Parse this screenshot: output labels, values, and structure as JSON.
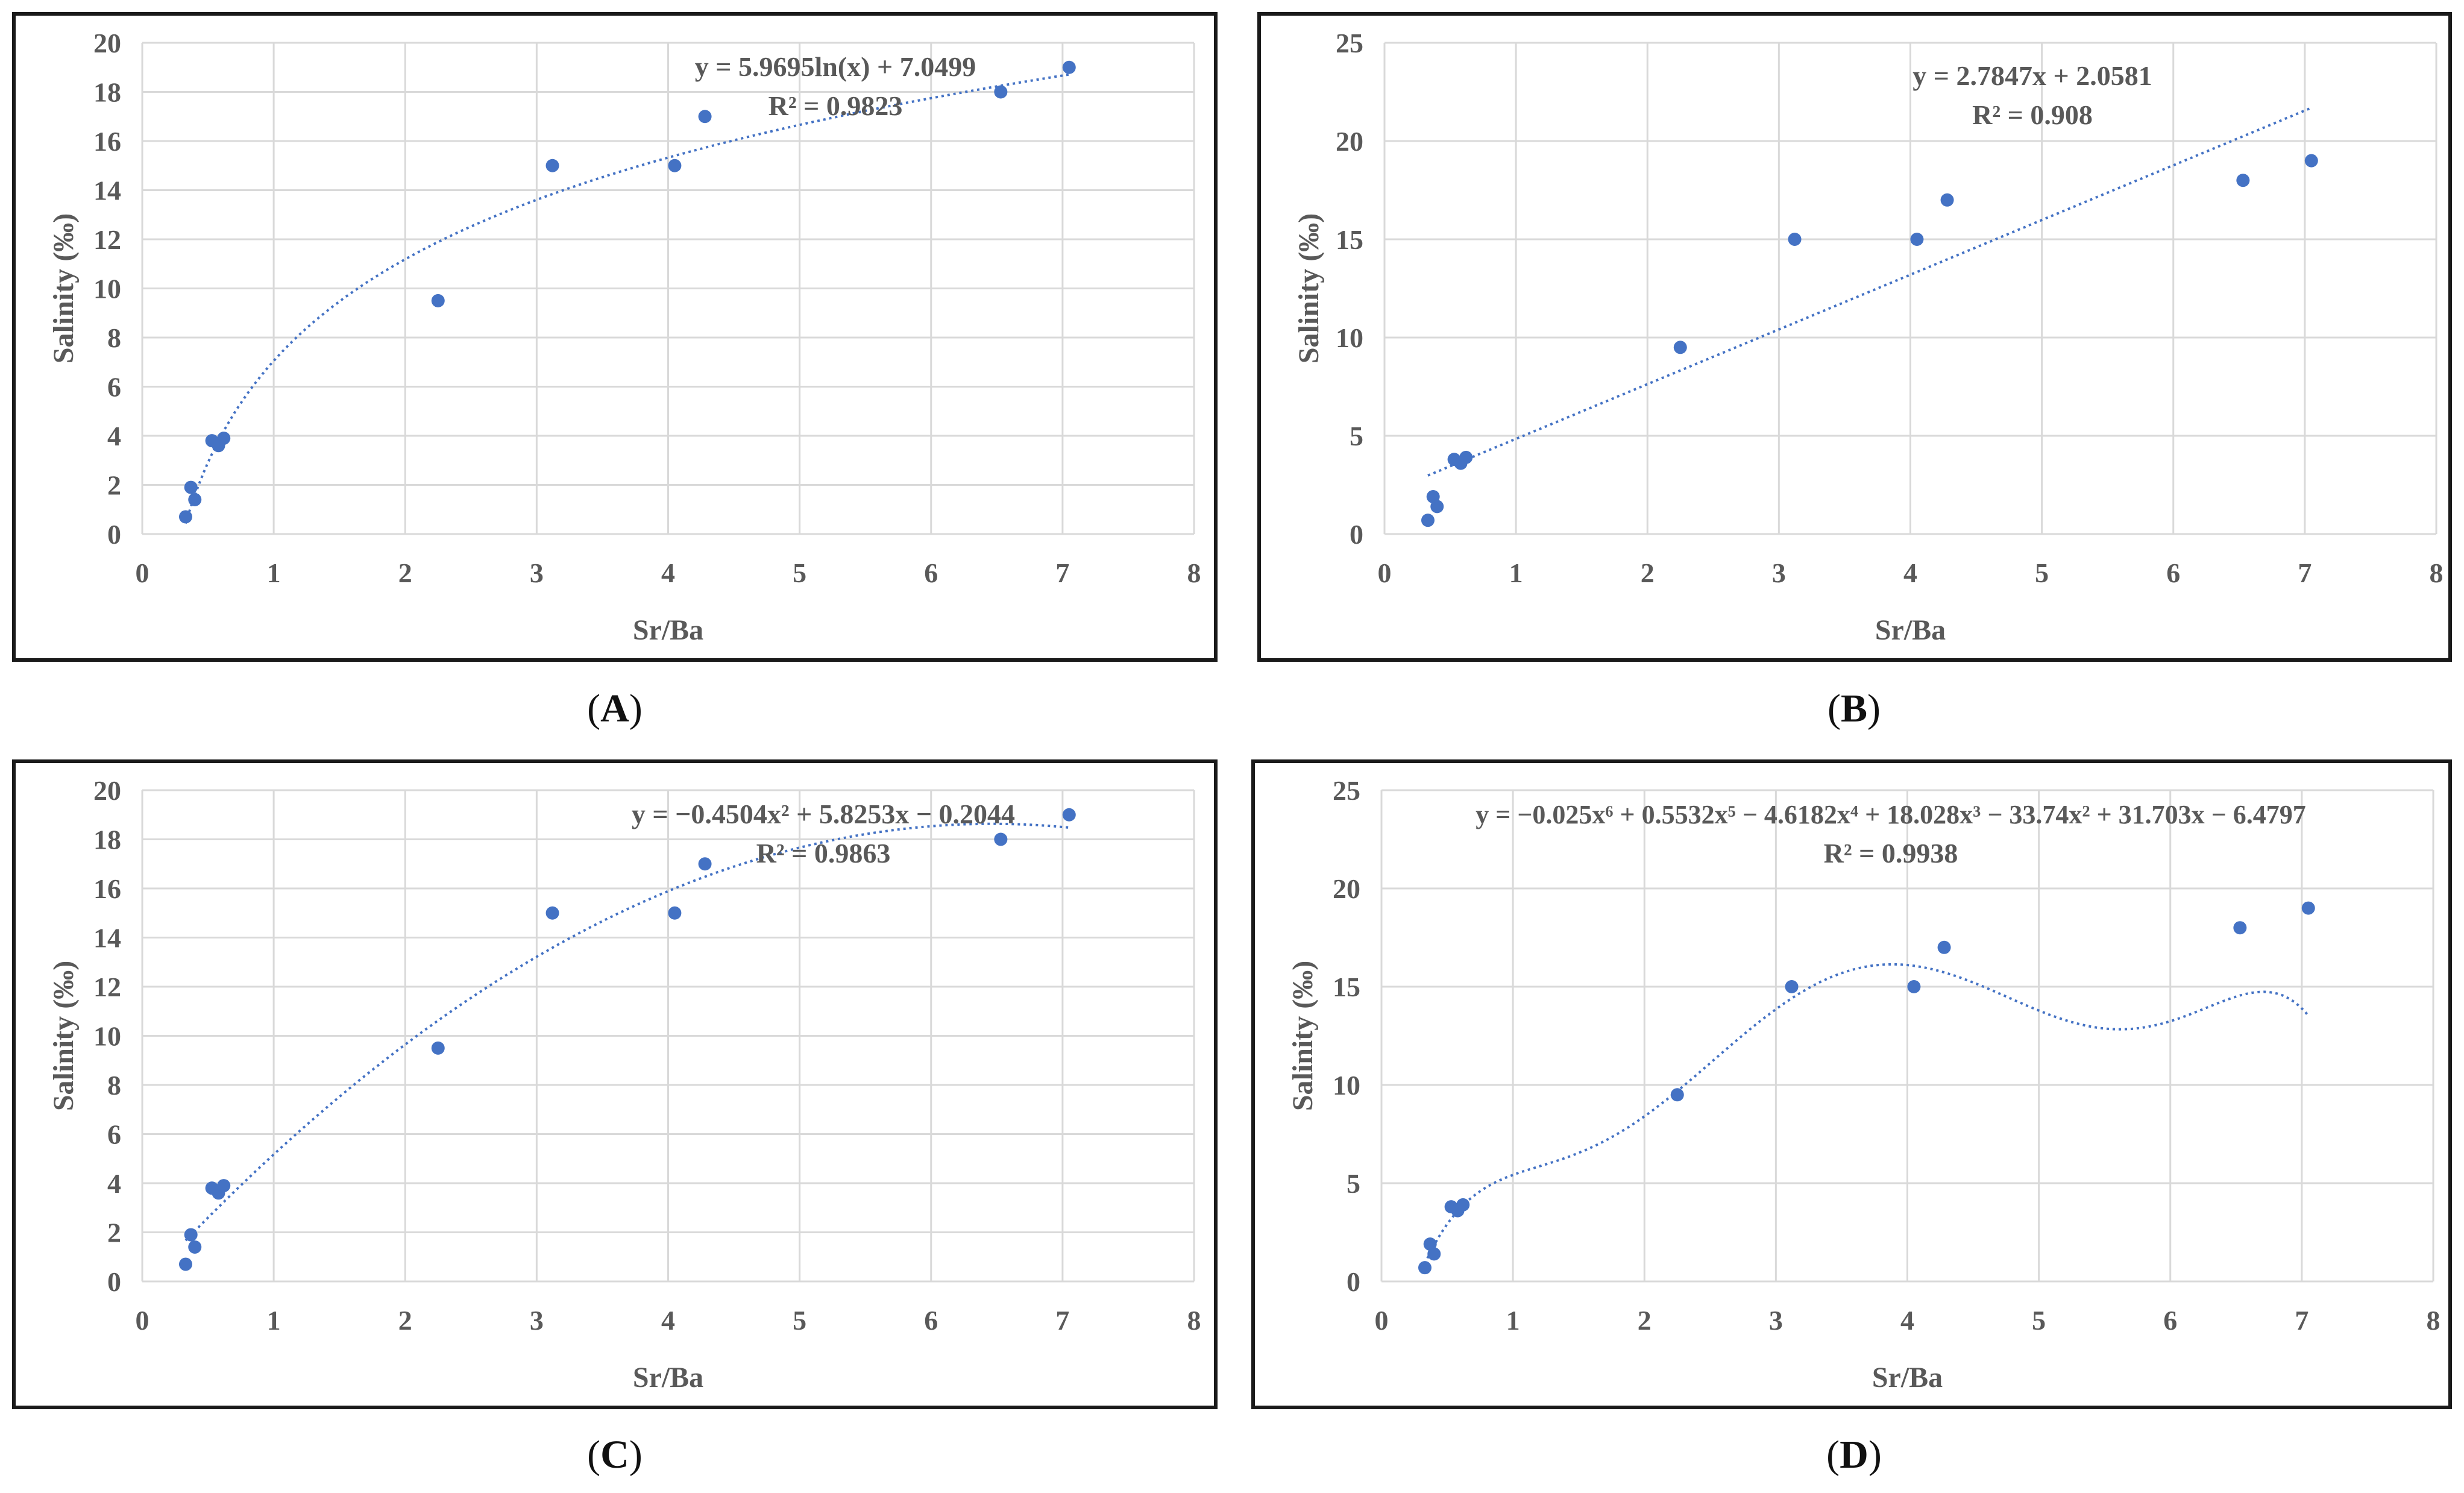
{
  "panels": [
    {
      "caption_label": "A",
      "eq_line1": "y = 5.9695ln(x) + 7.0499",
      "eq_line2": "R² = 0.9823"
    },
    {
      "caption_label": "B",
      "eq_line1": "y = 2.7847x + 2.0581",
      "eq_line2": "R² = 0.908"
    },
    {
      "caption_label": "C",
      "eq_line1": "y = −0.4504x² + 5.8253x − 0.2044",
      "eq_line2": "R² = 0.9863"
    },
    {
      "caption_label": "D",
      "eq_line1": "y = −0.025x⁶ + 0.5532x⁵ − 4.6182x⁴ + 18.028x³ − 33.74x² + 31.703x − 6.4797",
      "eq_line2": "R² = 0.9938"
    }
  ],
  "colors": {
    "marker": "#4472C4",
    "trend": "#4472C4",
    "grid": "#d9d9d9",
    "text": "#595959"
  },
  "chart_data": [
    {
      "type": "scatter",
      "panel": "A",
      "trend_type": "log",
      "coefficients": {
        "a": 5.9695,
        "b": 7.0499
      },
      "x": [
        0.33,
        0.37,
        0.4,
        0.53,
        0.58,
        0.62,
        2.25,
        3.12,
        4.05,
        4.28,
        6.53,
        7.05
      ],
      "y": [
        0.7,
        1.9,
        1.4,
        3.8,
        3.6,
        3.9,
        9.5,
        15.0,
        15.0,
        17.0,
        18.0,
        19.0
      ],
      "xlabel": "Sr/Ba",
      "ylabel": "Salinity (‰)",
      "xlim": [
        0,
        8
      ],
      "ylim": [
        0,
        20
      ],
      "xticks": [
        "0",
        "1",
        "2",
        "3",
        "4",
        "5",
        "6",
        "7",
        "8"
      ],
      "yticks": [
        "0",
        "2",
        "4",
        "6",
        "8",
        "10",
        "12",
        "14",
        "16",
        "18",
        "20"
      ],
      "grid": true
    },
    {
      "type": "scatter",
      "panel": "B",
      "trend_type": "linear",
      "coefficients": {
        "a": 2.7847,
        "b": 2.0581
      },
      "x": [
        0.33,
        0.37,
        0.4,
        0.53,
        0.58,
        0.62,
        2.25,
        3.12,
        4.05,
        4.28,
        6.53,
        7.05
      ],
      "y": [
        0.7,
        1.9,
        1.4,
        3.8,
        3.6,
        3.9,
        9.5,
        15.0,
        15.0,
        17.0,
        18.0,
        19.0
      ],
      "xlabel": "Sr/Ba",
      "ylabel": "Salinity (‰)",
      "xlim": [
        0,
        8
      ],
      "ylim": [
        0,
        25
      ],
      "xticks": [
        "0",
        "1",
        "2",
        "3",
        "4",
        "5",
        "6",
        "7",
        "8"
      ],
      "yticks": [
        "0",
        "5",
        "10",
        "15",
        "20",
        "25"
      ],
      "grid": true
    },
    {
      "type": "scatter",
      "panel": "C",
      "trend_type": "poly2",
      "coefficients": {
        "c2": -0.4504,
        "c1": 5.8253,
        "c0": -0.2044
      },
      "x": [
        0.33,
        0.37,
        0.4,
        0.53,
        0.58,
        0.62,
        2.25,
        3.12,
        4.05,
        4.28,
        6.53,
        7.05
      ],
      "y": [
        0.7,
        1.9,
        1.4,
        3.8,
        3.6,
        3.9,
        9.5,
        15.0,
        15.0,
        17.0,
        18.0,
        19.0
      ],
      "xlabel": "Sr/Ba",
      "ylabel": "Salinity (‰)",
      "xlim": [
        0,
        8
      ],
      "ylim": [
        0,
        20
      ],
      "xticks": [
        "0",
        "1",
        "2",
        "3",
        "4",
        "5",
        "6",
        "7",
        "8"
      ],
      "yticks": [
        "0",
        "2",
        "4",
        "6",
        "8",
        "10",
        "12",
        "14",
        "16",
        "18",
        "20"
      ],
      "grid": true
    },
    {
      "type": "scatter",
      "panel": "D",
      "trend_type": "poly6",
      "coefficients": {
        "c6": -0.025,
        "c5": 0.5532,
        "c4": -4.6182,
        "c3": 18.028,
        "c2": -33.74,
        "c1": 31.703,
        "c0": -6.4797
      },
      "x": [
        0.33,
        0.37,
        0.4,
        0.53,
        0.58,
        0.62,
        2.25,
        3.12,
        4.05,
        4.28,
        6.53,
        7.05
      ],
      "y": [
        0.7,
        1.9,
        1.4,
        3.8,
        3.6,
        3.9,
        9.5,
        15.0,
        15.0,
        17.0,
        18.0,
        19.0
      ],
      "xlabel": "Sr/Ba",
      "ylabel": "Salinity (‰)",
      "xlim": [
        0,
        8
      ],
      "ylim": [
        0,
        25
      ],
      "xticks": [
        "0",
        "1",
        "2",
        "3",
        "4",
        "5",
        "6",
        "7",
        "8"
      ],
      "yticks": [
        "0",
        "5",
        "10",
        "15",
        "20",
        "25"
      ],
      "grid": true
    }
  ]
}
